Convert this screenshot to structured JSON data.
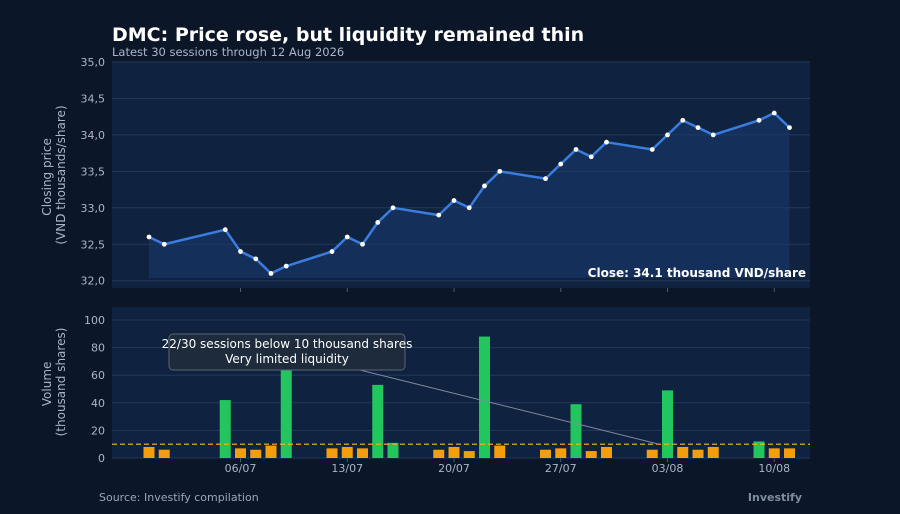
{
  "title": "DMC: Price rose, but liquidity remained thin",
  "subtitle": "Latest 30 sessions through 12 Aug 2026",
  "source": "Source: Investify compilation",
  "brand": "Investify",
  "colors": {
    "background": "#0b1628",
    "panel": "#0f2240",
    "price_line": "#3b7ddd",
    "volume_high": "#22c55e",
    "volume_low": "#f59e0b",
    "threshold": "#f5b82e"
  },
  "chart_data": [
    {
      "type": "line",
      "ylabel": [
        "Closing price",
        "(VND thousands/share)"
      ],
      "ylim": [
        31.9,
        35.0
      ],
      "yticks": [
        "35,0",
        "34,5",
        "34,0",
        "33,5",
        "33,0",
        "32,5",
        "32,0"
      ],
      "ytick_values": [
        35.0,
        34.5,
        34.0,
        33.5,
        33.0,
        32.5,
        32.0
      ],
      "x": [
        "2026-06-30",
        "2026-07-01",
        "2026-07-05",
        "2026-07-06",
        "2026-07-07",
        "2026-07-08",
        "2026-07-09",
        "2026-07-12",
        "2026-07-13",
        "2026-07-14",
        "2026-07-15",
        "2026-07-16",
        "2026-07-19",
        "2026-07-20",
        "2026-07-21",
        "2026-07-22",
        "2026-07-23",
        "2026-07-26",
        "2026-07-27",
        "2026-07-28",
        "2026-07-29",
        "2026-07-30",
        "2026-08-02",
        "2026-08-03",
        "2026-08-04",
        "2026-08-05",
        "2026-08-06",
        "2026-08-09",
        "2026-08-10",
        "2026-08-11"
      ],
      "values": [
        32.6,
        32.5,
        32.7,
        32.4,
        32.3,
        32.1,
        32.2,
        32.4,
        32.6,
        32.5,
        32.8,
        33.0,
        32.9,
        33.1,
        33.0,
        33.3,
        33.5,
        33.4,
        33.6,
        33.8,
        33.7,
        33.9,
        33.8,
        34.0,
        34.2,
        34.1,
        34.0,
        34.2,
        34.3,
        34.1
      ],
      "annotation": "Close: 34.1 thousand VND/share"
    },
    {
      "type": "bar",
      "ylabel": [
        "Volume",
        "(thousand shares)"
      ],
      "ylim": [
        0,
        110
      ],
      "yticks": [
        "100",
        "80",
        "60",
        "40",
        "20",
        "0"
      ],
      "ytick_values": [
        100,
        80,
        60,
        40,
        20,
        0
      ],
      "threshold": 10,
      "values": [
        8,
        6,
        42,
        7,
        6,
        9,
        65,
        7,
        8,
        7,
        53,
        11,
        6,
        8,
        5,
        88,
        9,
        6,
        7,
        39,
        5,
        8,
        6,
        49,
        8,
        6,
        8,
        12,
        7,
        7
      ],
      "annotation": [
        "22/30 sessions below 10 thousand shares",
        "Very limited liquidity"
      ]
    }
  ],
  "x_axis": {
    "tick_dates": [
      "2026-07-06",
      "2026-07-13",
      "2026-07-20",
      "2026-07-27",
      "2026-08-03",
      "2026-08-10"
    ],
    "tick_labels": [
      "06/07",
      "13/07",
      "20/07",
      "27/07",
      "03/08",
      "10/08"
    ]
  }
}
